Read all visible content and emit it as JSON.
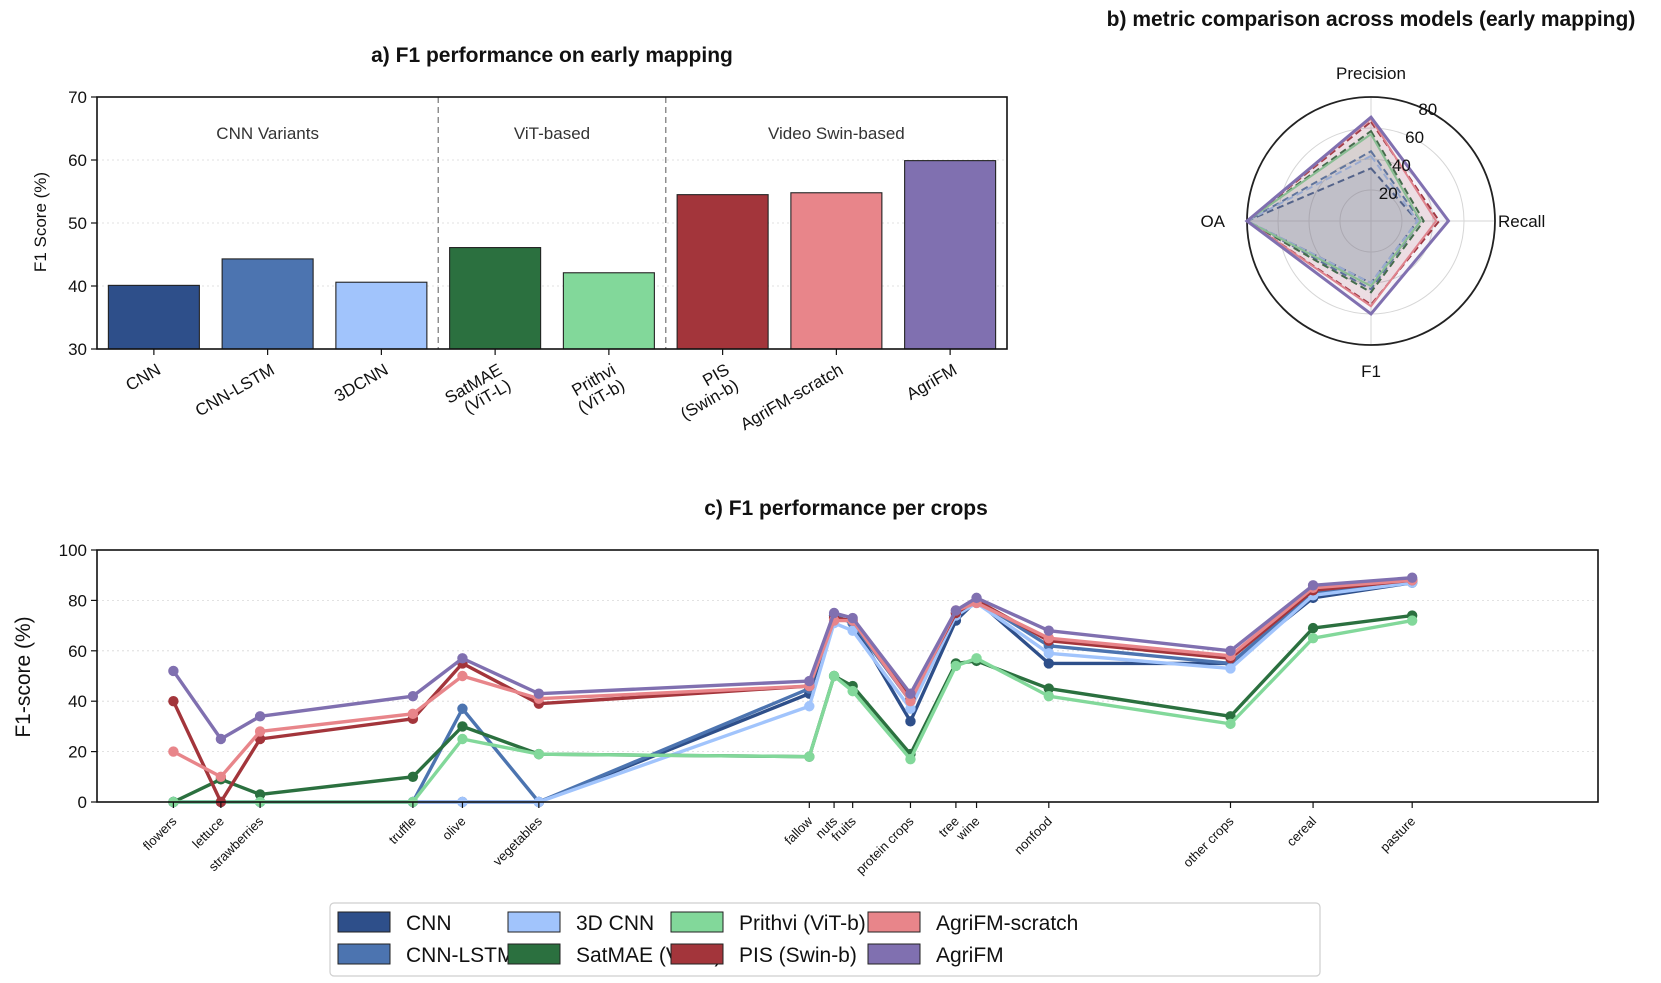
{
  "chart_data": [
    {
      "id": "a",
      "type": "bar",
      "title": "a) F1 performance on early mapping",
      "xlabel": "",
      "ylabel": "F1 Score (%)",
      "ylim": [
        30,
        70
      ],
      "yticks": [
        30,
        40,
        50,
        60,
        70
      ],
      "categories": [
        "CNN",
        "CNN-LSTM",
        "3DCNN",
        "SatMAE\n(ViT-L)",
        "Prithvi\n(ViT-b)",
        "PIS\n(Swin-b)",
        "AgriFM-scratch",
        "AgriFM"
      ],
      "values": [
        40.1,
        44.3,
        40.6,
        46.1,
        42.1,
        54.5,
        54.8,
        59.9
      ],
      "colors": [
        "#2e4f8a",
        "#4c74b0",
        "#a1c4fc",
        "#2b703f",
        "#82d89a",
        "#a3353b",
        "#e8858a",
        "#8070b0"
      ],
      "groups": [
        {
          "label": "CNN Variants",
          "start": 0,
          "end": 2
        },
        {
          "label": "ViT-based",
          "start": 3,
          "end": 4
        },
        {
          "label": "Video Swin-based",
          "start": 5,
          "end": 7
        }
      ],
      "grid": true
    },
    {
      "id": "b",
      "type": "radar",
      "title": "b) metric comparison across models (early mapping)",
      "axes": [
        "Precision",
        "Recall",
        "F1",
        "OA"
      ],
      "rlim": [
        0,
        80
      ],
      "rticks": [
        20,
        40,
        60,
        80
      ],
      "series": [
        {
          "name": "CNN",
          "color": "#2e4f8a",
          "dashed": true,
          "values": [
            34,
            30,
            40,
            80
          ]
        },
        {
          "name": "CNN-LSTM",
          "color": "#4c74b0",
          "dashed": true,
          "values": [
            45,
            32,
            44,
            80
          ]
        },
        {
          "name": "3D CNN",
          "color": "#a1c4fc",
          "dashed": true,
          "values": [
            42,
            30,
            40,
            80
          ]
        },
        {
          "name": "SatMAE (ViT-L)",
          "color": "#2b703f",
          "dashed": true,
          "values": [
            58,
            34,
            46,
            80
          ]
        },
        {
          "name": "Prithvi (ViT-b)",
          "color": "#82d89a",
          "dashed": false,
          "values": [
            56,
            32,
            42,
            80
          ]
        },
        {
          "name": "PIS (Swin-b)",
          "color": "#a3353b",
          "dashed": true,
          "values": [
            64,
            44,
            54,
            80
          ]
        },
        {
          "name": "AgriFM-scratch",
          "color": "#e8858a",
          "dashed": false,
          "values": [
            66,
            42,
            55,
            80
          ]
        },
        {
          "name": "AgriFM",
          "color": "#8070b0",
          "dashed": false,
          "values": [
            67,
            50,
            60,
            80
          ]
        }
      ]
    },
    {
      "id": "c",
      "type": "line",
      "title": "c) F1 performance per crops",
      "ylabel": "F1-score (%)",
      "ylim": [
        0,
        100
      ],
      "yticks": [
        0,
        20,
        40,
        60,
        80,
        100
      ],
      "xlim": [
        -1.85,
        34.5
      ],
      "categories": [
        "flowers",
        "lettuce",
        "strawberries",
        "truffle",
        "olive",
        "vegetables",
        "fallow",
        "nuts",
        "fruits",
        "protein crops",
        "tree",
        "wine",
        "nonfood",
        "other crops",
        "cereal",
        "pasture"
      ],
      "x": [
        0,
        1.15,
        2.1,
        5.8,
        7.0,
        8.85,
        15.4,
        16.0,
        16.45,
        17.85,
        18.95,
        19.45,
        21.2,
        25.6,
        27.6,
        30.0
      ],
      "series": [
        {
          "name": "CNN",
          "color": "#2e4f8a",
          "values": [
            0,
            0,
            0,
            0,
            0,
            0,
            43,
            74,
            71,
            32,
            72,
            80,
            55,
            55,
            81,
            87
          ]
        },
        {
          "name": "CNN-LSTM",
          "color": "#4c74b0",
          "values": [
            0,
            0,
            0,
            0,
            37,
            0,
            45,
            74,
            71,
            40,
            75,
            80,
            62,
            55,
            83,
            88
          ]
        },
        {
          "name": "3D CNN",
          "color": "#a1c4fc",
          "values": [
            0,
            0,
            0,
            0,
            0,
            0,
            38,
            71,
            68,
            37,
            74,
            79,
            59,
            53,
            82,
            87
          ]
        },
        {
          "name": "SatMAE (ViT-L)",
          "color": "#2b703f",
          "values": [
            0,
            9,
            3,
            10,
            30,
            19,
            18,
            50,
            46,
            19,
            55,
            56,
            45,
            34,
            69,
            74
          ]
        },
        {
          "name": "Prithvi (ViT-b)",
          "color": "#82d89a",
          "values": [
            0,
            0,
            0,
            0,
            25,
            19,
            18,
            50,
            44,
            17,
            54,
            57,
            42,
            31,
            65,
            72
          ]
        },
        {
          "name": "PIS (Swin-b)",
          "color": "#a3353b",
          "values": [
            40,
            0,
            25,
            33,
            55,
            39,
            46,
            73,
            72,
            41,
            75,
            80,
            64,
            57,
            84,
            88
          ]
        },
        {
          "name": "AgriFM-scratch",
          "color": "#e8858a",
          "values": [
            20,
            10,
            28,
            35,
            50,
            41,
            46,
            72,
            72,
            40,
            76,
            79,
            65,
            58,
            85,
            88
          ]
        },
        {
          "name": "AgriFM",
          "color": "#8070b0",
          "values": [
            52,
            25,
            34,
            42,
            57,
            43,
            48,
            75,
            73,
            43,
            76,
            81,
            68,
            60,
            86,
            89
          ]
        }
      ],
      "grid": true
    }
  ],
  "legend": [
    {
      "label": "CNN",
      "color": "#2e4f8a"
    },
    {
      "label": "CNN-LSTM",
      "color": "#4c74b0"
    },
    {
      "label": "3D CNN",
      "color": "#a1c4fc"
    },
    {
      "label": "SatMAE (ViT-L)",
      "color": "#2b703f"
    },
    {
      "label": "Prithvi (ViT-b)",
      "color": "#82d89a"
    },
    {
      "label": "PIS (Swin-b)",
      "color": "#a3353b"
    },
    {
      "label": "AgriFM-scratch",
      "color": "#e8858a"
    },
    {
      "label": "AgriFM",
      "color": "#8070b0"
    }
  ]
}
